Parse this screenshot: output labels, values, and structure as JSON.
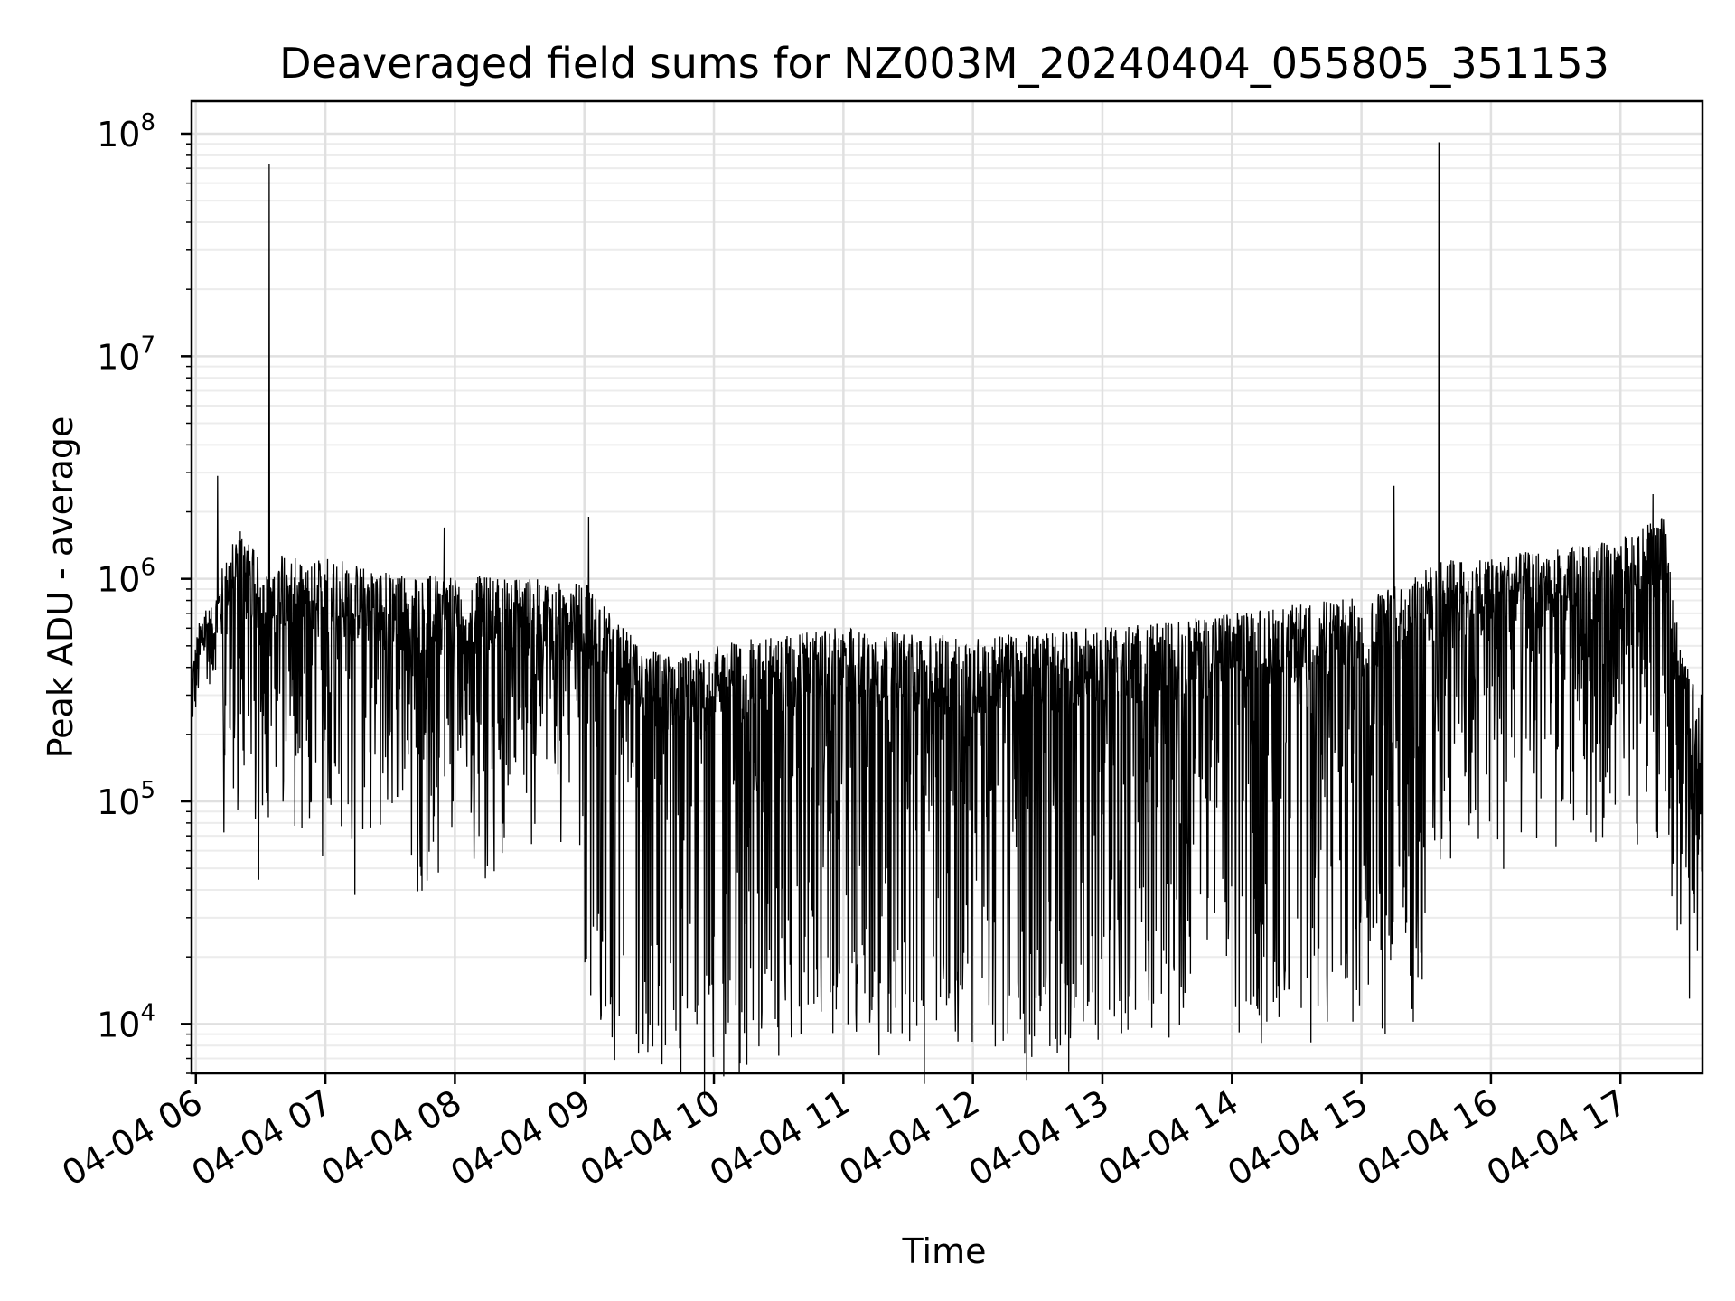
{
  "chart_data": {
    "type": "line",
    "title": "Deaveraged field sums for NZ003M_20240404_055805_351153",
    "xlabel": "Time",
    "ylabel": "Peak ADU - average",
    "x_range": [
      "2024-04-04 05:58",
      "2024-04-04 17:38"
    ],
    "y_range": [
      6000,
      140000000
    ],
    "yscale": "log",
    "x_ticks": [
      "04-04 06",
      "04-04 07",
      "04-04 08",
      "04-04 09",
      "04-04 10",
      "04-04 11",
      "04-04 12",
      "04-04 13",
      "04-04 14",
      "04-04 15",
      "04-04 16",
      "04-04 17"
    ],
    "y_ticks": [
      {
        "value": 10000,
        "base": "10",
        "exp": "4"
      },
      {
        "value": 100000,
        "base": "10",
        "exp": "5"
      },
      {
        "value": 1000000,
        "base": "10",
        "exp": "6"
      },
      {
        "value": 10000000,
        "base": "10",
        "exp": "7"
      },
      {
        "value": 100000000,
        "base": "10",
        "exp": "8"
      }
    ],
    "grid": true,
    "line_color": "#000000",
    "series": [
      {
        "color": "#000000",
        "points": [
          [
            "05:58",
            260000
          ],
          [
            "06:01",
            380000
          ],
          [
            "06:04",
            520000
          ],
          [
            "06:07",
            460000
          ],
          [
            "06:10",
            2900000
          ],
          [
            "06:12",
            700000
          ],
          [
            "06:20",
            1100000
          ],
          [
            "06:30",
            750000
          ],
          [
            "06:34",
            73000000
          ],
          [
            "06:35",
            600000
          ],
          [
            "06:40",
            900000
          ],
          [
            "06:50",
            700000
          ],
          [
            "07:00",
            800000
          ],
          [
            "07:20",
            700000
          ],
          [
            "07:40",
            650000
          ],
          [
            "07:55",
            1700000
          ],
          [
            "08:00",
            650000
          ],
          [
            "08:30",
            640000
          ],
          [
            "08:50",
            600000
          ],
          [
            "09:00",
            620000
          ],
          [
            "09:02",
            1900000
          ],
          [
            "09:05",
            550000
          ],
          [
            "09:15",
            400000
          ],
          [
            "09:30",
            300000
          ],
          [
            "09:45",
            280000
          ],
          [
            "10:00",
            320000
          ],
          [
            "10:30",
            350000
          ],
          [
            "11:00",
            380000
          ],
          [
            "11:30",
            360000
          ],
          [
            "12:00",
            340000
          ],
          [
            "12:30",
            360000
          ],
          [
            "13:00",
            380000
          ],
          [
            "13:30",
            400000
          ],
          [
            "14:00",
            440000
          ],
          [
            "14:30",
            480000
          ],
          [
            "15:00",
            520000
          ],
          [
            "15:15",
            2600000
          ],
          [
            "15:20",
            600000
          ],
          [
            "15:30",
            700000
          ],
          [
            "15:36",
            91000000
          ],
          [
            "15:37",
            750000
          ],
          [
            "16:00",
            800000
          ],
          [
            "16:30",
            850000
          ],
          [
            "16:50",
            900000
          ],
          [
            "17:05",
            1000000
          ],
          [
            "17:15",
            2400000
          ],
          [
            "17:20",
            1200000
          ],
          [
            "17:28",
            300000
          ],
          [
            "17:35",
            200000
          ]
        ]
      }
    ]
  }
}
